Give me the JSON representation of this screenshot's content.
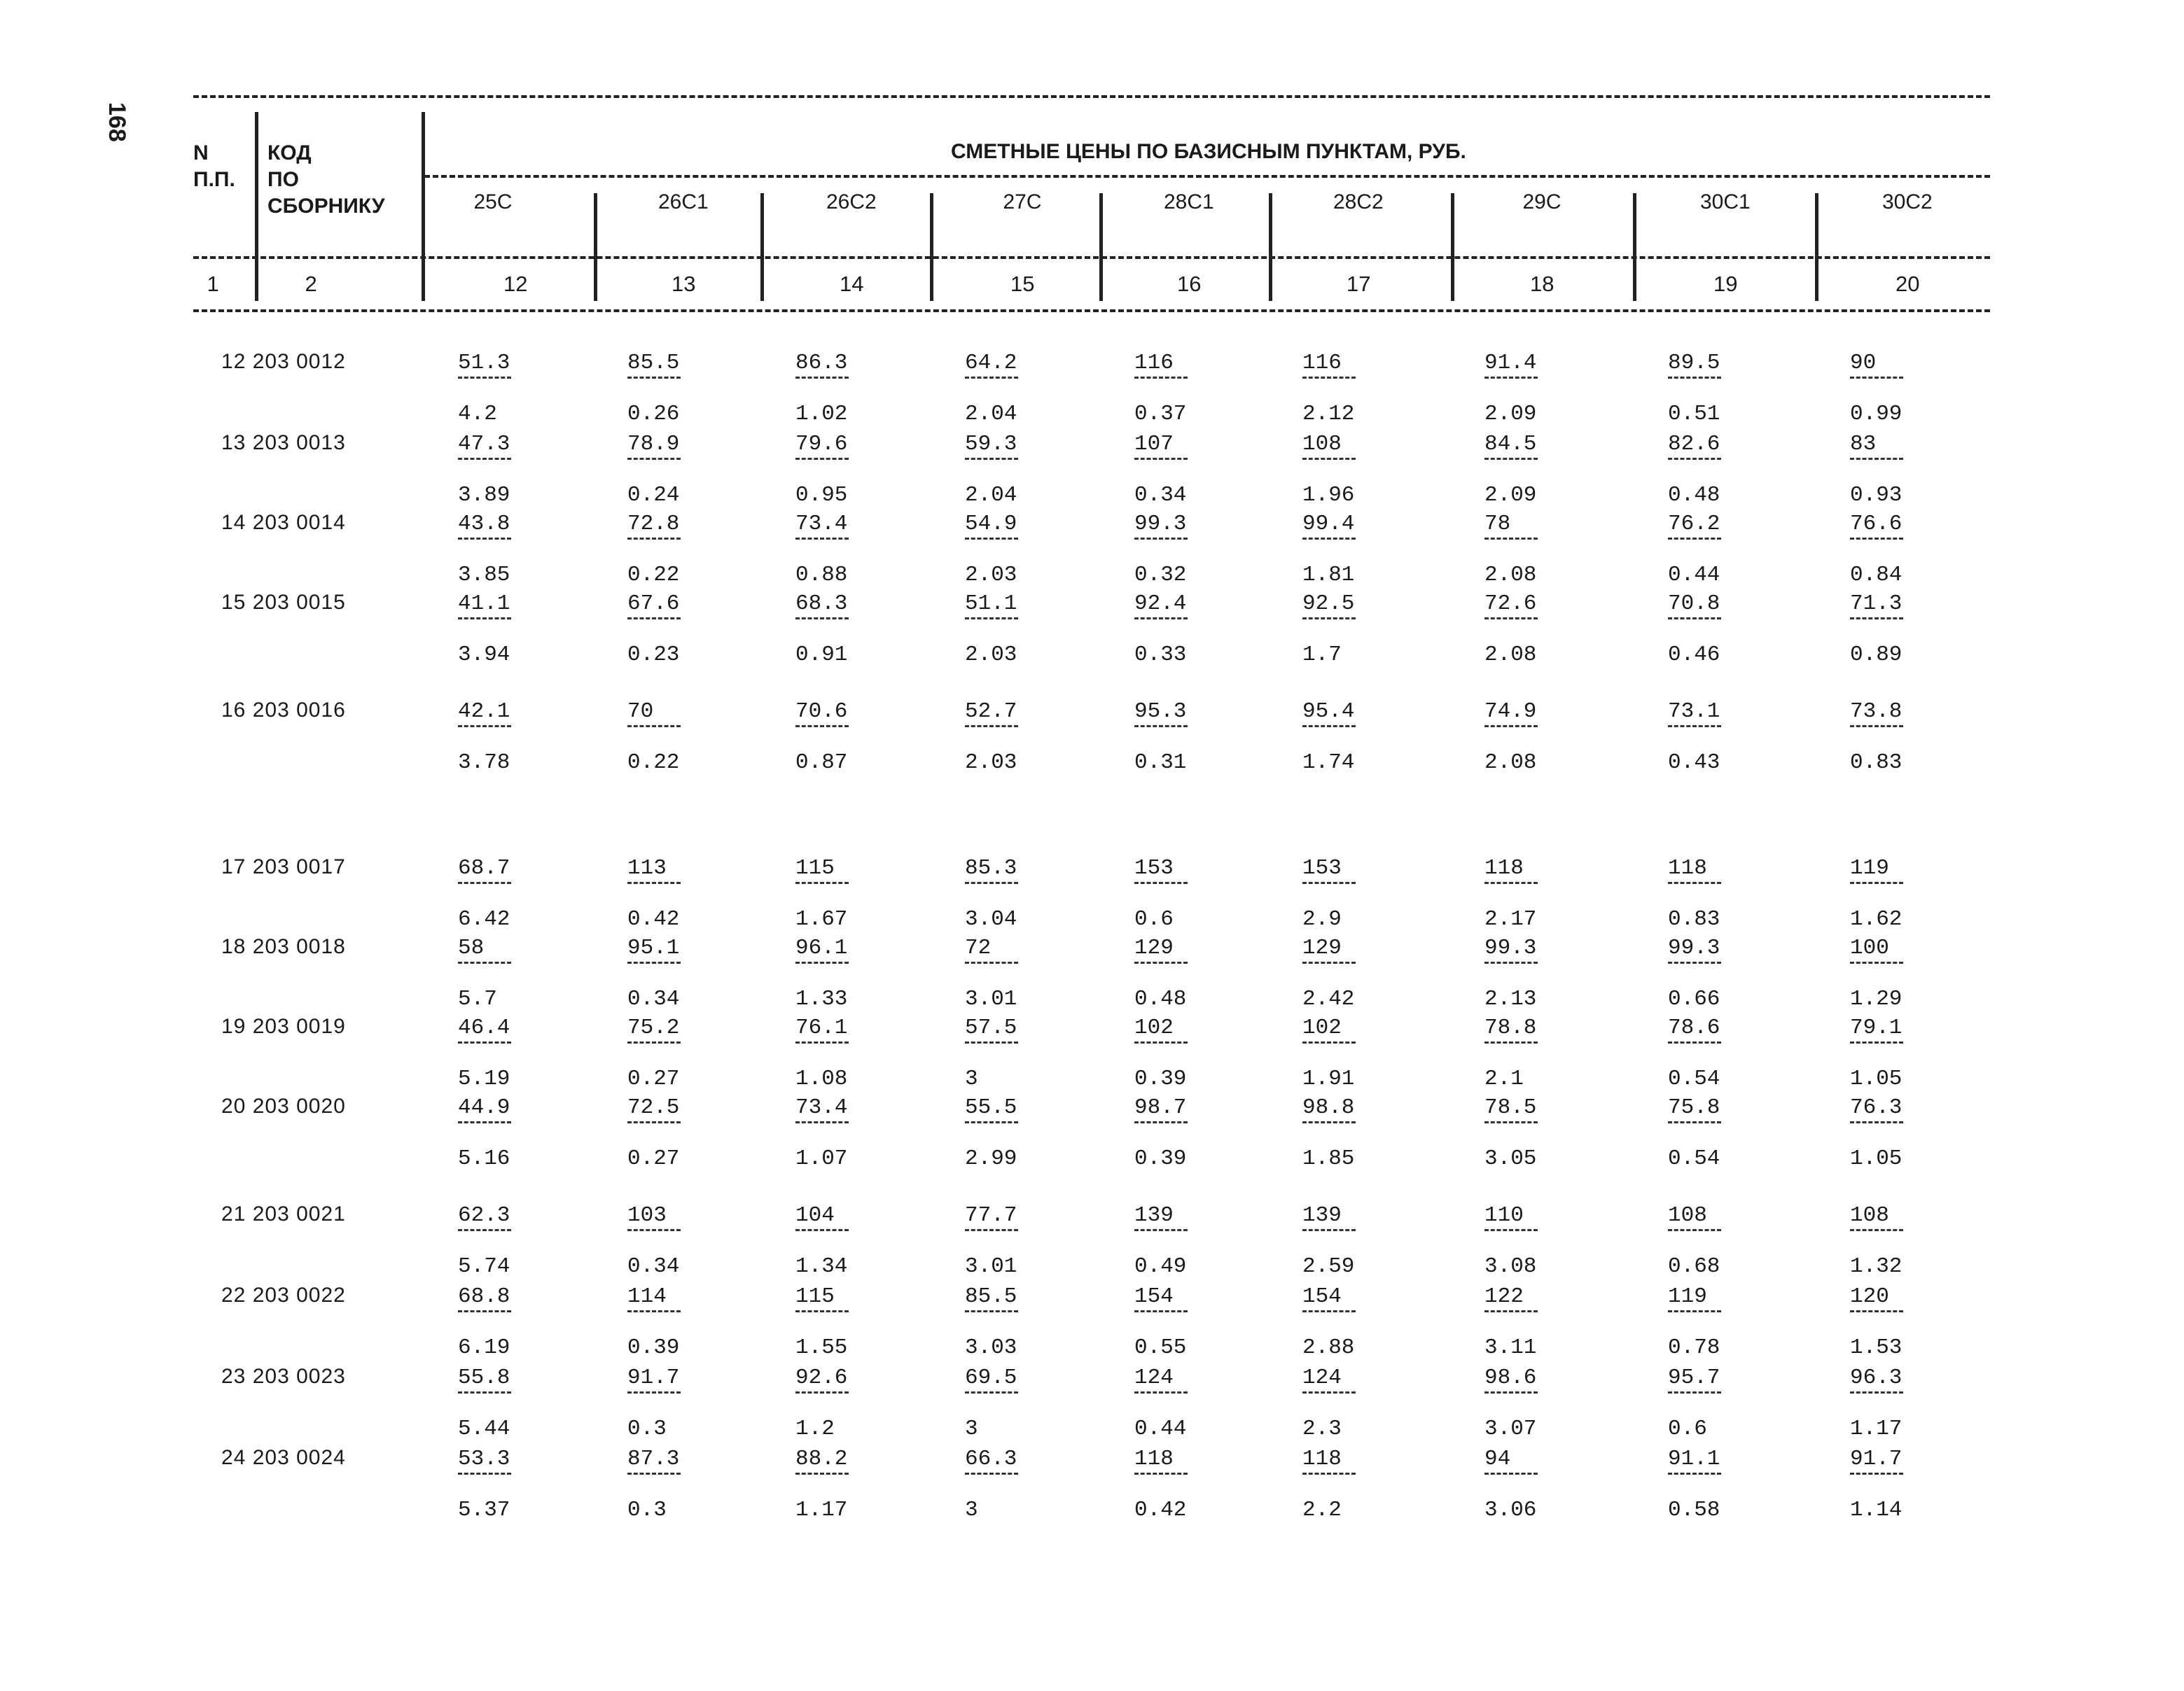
{
  "page_number": "168",
  "header": {
    "n_label": "N\nП.П.",
    "code_label": "КОД\nПО\nСБОРНИКУ",
    "prices_title": "СМЕТНЫЕ ЦЕНЫ ПО БАЗИСНЫМ ПУНКТАМ, РУБ.",
    "points": [
      "25С",
      "26С1",
      "26С2",
      "27С",
      "28С1",
      "28С2",
      "29С",
      "30С1",
      "30С2"
    ],
    "col_numbers": [
      "1",
      "2",
      "12",
      "13",
      "14",
      "15",
      "16",
      "17",
      "18",
      "19",
      "20"
    ]
  },
  "rows": [
    {
      "label": "12 203 0012",
      "values": [
        [
          "51.3",
          "4.2"
        ],
        [
          "85.5",
          "0.26"
        ],
        [
          "86.3",
          "1.02"
        ],
        [
          "64.2",
          "2.04"
        ],
        [
          "116",
          "0.37"
        ],
        [
          "116",
          "2.12"
        ],
        [
          "91.4",
          "2.09"
        ],
        [
          "89.5",
          "0.51"
        ],
        [
          "90",
          "0.99"
        ]
      ]
    },
    {
      "label": "13 203 0013",
      "values": [
        [
          "47.3",
          "3.89"
        ],
        [
          "78.9",
          "0.24"
        ],
        [
          "79.6",
          "0.95"
        ],
        [
          "59.3",
          "2.04"
        ],
        [
          "107",
          "0.34"
        ],
        [
          "108",
          "1.96"
        ],
        [
          "84.5",
          "2.09"
        ],
        [
          "82.6",
          "0.48"
        ],
        [
          "83",
          "0.93"
        ]
      ]
    },
    {
      "label": "14 203 0014",
      "values": [
        [
          "43.8",
          "3.85"
        ],
        [
          "72.8",
          "0.22"
        ],
        [
          "73.4",
          "0.88"
        ],
        [
          "54.9",
          "2.03"
        ],
        [
          "99.3",
          "0.32"
        ],
        [
          "99.4",
          "1.81"
        ],
        [
          "78",
          "2.08"
        ],
        [
          "76.2",
          "0.44"
        ],
        [
          "76.6",
          "0.84"
        ]
      ]
    },
    {
      "label": "15 203 0015",
      "values": [
        [
          "41.1",
          "3.94"
        ],
        [
          "67.6",
          "0.23"
        ],
        [
          "68.3",
          "0.91"
        ],
        [
          "51.1",
          "2.03"
        ],
        [
          "92.4",
          "0.33"
        ],
        [
          "92.5",
          "1.7"
        ],
        [
          "72.6",
          "2.08"
        ],
        [
          "70.8",
          "0.46"
        ],
        [
          "71.3",
          "0.89"
        ]
      ]
    },
    {
      "label": "16 203 0016",
      "values": [
        [
          "42.1",
          "3.78"
        ],
        [
          "70",
          "0.22"
        ],
        [
          "70.6",
          "0.87"
        ],
        [
          "52.7",
          "2.03"
        ],
        [
          "95.3",
          "0.31"
        ],
        [
          "95.4",
          "1.74"
        ],
        [
          "74.9",
          "2.08"
        ],
        [
          "73.1",
          "0.43"
        ],
        [
          "73.8",
          "0.83"
        ]
      ]
    },
    {
      "label": "17 203 0017",
      "values": [
        [
          "68.7",
          "6.42"
        ],
        [
          "113",
          "0.42"
        ],
        [
          "115",
          "1.67"
        ],
        [
          "85.3",
          "3.04"
        ],
        [
          "153",
          "0.6"
        ],
        [
          "153",
          "2.9"
        ],
        [
          "118",
          "2.17"
        ],
        [
          "118",
          "0.83"
        ],
        [
          "119",
          "1.62"
        ]
      ]
    },
    {
      "label": "18 203 0018",
      "values": [
        [
          "58",
          "5.7"
        ],
        [
          "95.1",
          "0.34"
        ],
        [
          "96.1",
          "1.33"
        ],
        [
          "72",
          "3.01"
        ],
        [
          "129",
          "0.48"
        ],
        [
          "129",
          "2.42"
        ],
        [
          "99.3",
          "2.13"
        ],
        [
          "99.3",
          "0.66"
        ],
        [
          "100",
          "1.29"
        ]
      ]
    },
    {
      "label": "19 203 0019",
      "values": [
        [
          "46.4",
          "5.19"
        ],
        [
          "75.2",
          "0.27"
        ],
        [
          "76.1",
          "1.08"
        ],
        [
          "57.5",
          "3"
        ],
        [
          "102",
          "0.39"
        ],
        [
          "102",
          "1.91"
        ],
        [
          "78.8",
          "2.1"
        ],
        [
          "78.6",
          "0.54"
        ],
        [
          "79.1",
          "1.05"
        ]
      ]
    },
    {
      "label": "20 203 0020",
      "values": [
        [
          "44.9",
          "5.16"
        ],
        [
          "72.5",
          "0.27"
        ],
        [
          "73.4",
          "1.07"
        ],
        [
          "55.5",
          "2.99"
        ],
        [
          "98.7",
          "0.39"
        ],
        [
          "98.8",
          "1.85"
        ],
        [
          "78.5",
          "3.05"
        ],
        [
          "75.8",
          "0.54"
        ],
        [
          "76.3",
          "1.05"
        ]
      ]
    },
    {
      "label": "21 203 0021",
      "values": [
        [
          "62.3",
          "5.74"
        ],
        [
          "103",
          "0.34"
        ],
        [
          "104",
          "1.34"
        ],
        [
          "77.7",
          "3.01"
        ],
        [
          "139",
          "0.49"
        ],
        [
          "139",
          "2.59"
        ],
        [
          "110",
          "3.08"
        ],
        [
          "108",
          "0.68"
        ],
        [
          "108",
          "1.32"
        ]
      ]
    },
    {
      "label": "22 203 0022",
      "values": [
        [
          "68.8",
          "6.19"
        ],
        [
          "114",
          "0.39"
        ],
        [
          "115",
          "1.55"
        ],
        [
          "85.5",
          "3.03"
        ],
        [
          "154",
          "0.55"
        ],
        [
          "154",
          "2.88"
        ],
        [
          "122",
          "3.11"
        ],
        [
          "119",
          "0.78"
        ],
        [
          "120",
          "1.53"
        ]
      ]
    },
    {
      "label": "23 203 0023",
      "values": [
        [
          "55.8",
          "5.44"
        ],
        [
          "91.7",
          "0.3"
        ],
        [
          "92.6",
          "1.2"
        ],
        [
          "69.5",
          "3"
        ],
        [
          "124",
          "0.44"
        ],
        [
          "124",
          "2.3"
        ],
        [
          "98.6",
          "3.07"
        ],
        [
          "95.7",
          "0.6"
        ],
        [
          "96.3",
          "1.17"
        ]
      ]
    },
    {
      "label": "24 203 0024",
      "values": [
        [
          "53.3",
          "5.37"
        ],
        [
          "87.3",
          "0.3"
        ],
        [
          "88.2",
          "1.17"
        ],
        [
          "66.3",
          "3"
        ],
        [
          "118",
          "0.42"
        ],
        [
          "118",
          "2.2"
        ],
        [
          "94",
          "3.06"
        ],
        [
          "91.1",
          "0.58"
        ],
        [
          "91.7",
          "1.14"
        ]
      ]
    }
  ]
}
